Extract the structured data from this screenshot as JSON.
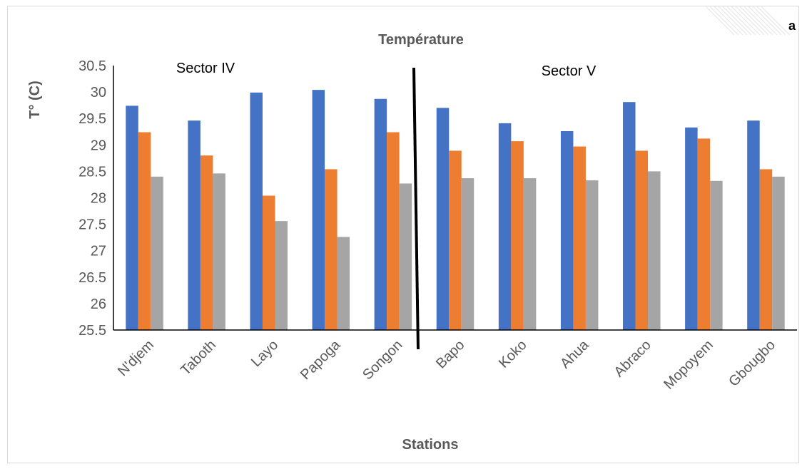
{
  "panel_label": "a",
  "chart_data": {
    "type": "bar",
    "title": "Température",
    "xlabel": "Stations",
    "ylabel": "T° (C)",
    "ylim": [
      25.5,
      30.5
    ],
    "yticks": [
      "30.5",
      "30",
      "29.5",
      "29",
      "28.5",
      "28",
      "27.5",
      "27",
      "26.5",
      "26",
      "25.5"
    ],
    "grid": false,
    "legend": "none",
    "categories": [
      "N'djem",
      "Taboth",
      "Layo",
      "Papoga",
      "Songon",
      "Bapo",
      "Koko",
      "Ahua",
      "Abraco",
      "Mopoyem",
      "Gbougbo"
    ],
    "series": [
      {
        "color": "#4472c4",
        "values": [
          29.74,
          29.46,
          29.99,
          30.04,
          29.87,
          29.7,
          29.41,
          29.26,
          29.81,
          29.33,
          29.46
        ]
      },
      {
        "color": "#ed7d31",
        "values": [
          29.24,
          28.8,
          28.04,
          28.54,
          29.24,
          28.89,
          29.07,
          28.97,
          28.89,
          29.12,
          28.54
        ]
      },
      {
        "color": "#a5a5a5",
        "values": [
          28.4,
          28.46,
          27.56,
          27.26,
          28.27,
          28.37,
          28.37,
          28.33,
          28.5,
          28.32,
          28.4
        ]
      }
    ],
    "annotations": [
      {
        "text": "Sector IV"
      },
      {
        "text": "Sector V"
      }
    ],
    "divider_after_category": "Songon"
  }
}
